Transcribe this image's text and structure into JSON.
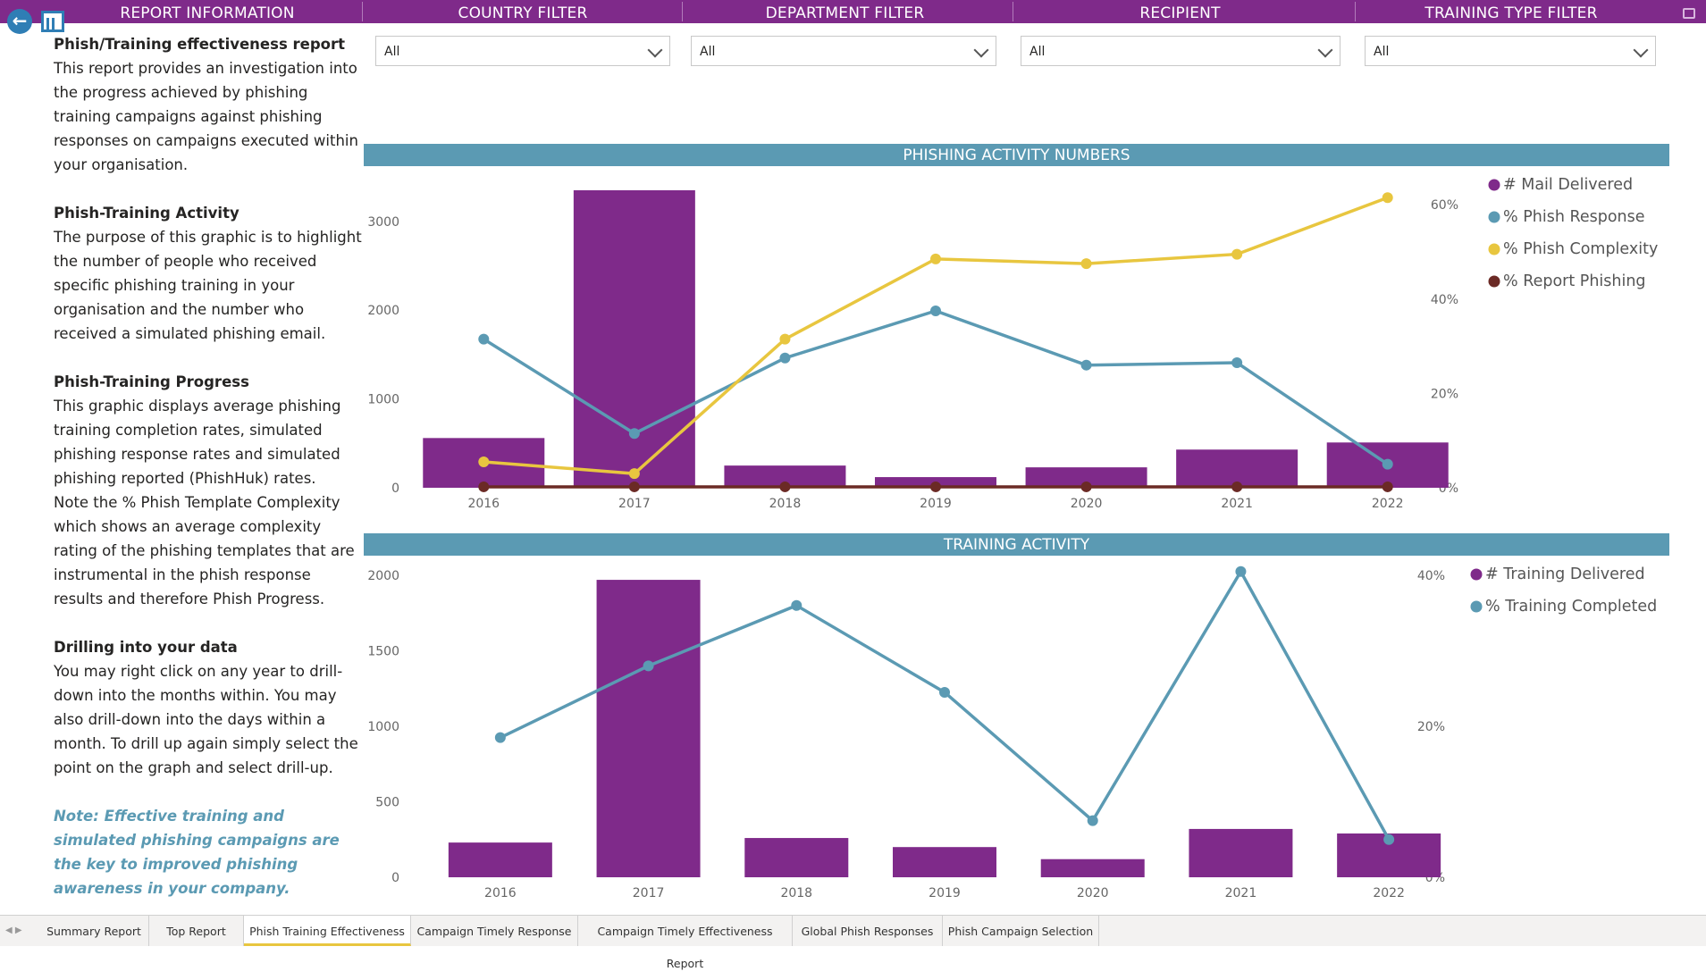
{
  "header": {
    "report_info": "REPORT INFORMATION",
    "country": "COUNTRY FILTER",
    "department": "DEPARTMENT FILTER",
    "recipient": "RECIPIENT",
    "training_type": "TRAINING TYPE FILTER"
  },
  "filters": {
    "country": "All",
    "department": "All",
    "recipient": "All",
    "training_type": "All"
  },
  "info": {
    "title1": "Phish/Training effectiveness report",
    "body1": "This report provides an investigation  into the progress achieved by phishing training campaigns against phishing responses on campaigns executed within your organisation.",
    "title2": "Phish-Training Activity",
    "body2": "The purpose of this graphic is to highlight the number of people who received specific phishing training in your organisation and the number who received a simulated phishing email.",
    "title3": "Phish-Training Progress",
    "body3a": "This graphic displays average phishing training completion rates, simulated phishing response rates and simulated phishing reported (PhishHuk) rates.",
    "body3b": "Note the % Phish Template Complexity which shows an average complexity rating of the phishing templates that are instrumental in the phish response results and therefore Phish Progress.",
    "title4": "Drilling into your data",
    "body4": "You may right click on any year to drill-down into the months within. You may also drill-down into the days within a month. To drill up again simply select the point on the graph and select drill-up.",
    "note": "Note: Effective training and simulated phishing campaigns are the key to improved phishing awareness in your company."
  },
  "sections": {
    "phishing": "PHISHING ACTIVITY NUMBERS",
    "training": "TRAINING ACTIVITY"
  },
  "chart_data": [
    {
      "type": "bar",
      "title": "PHISHING ACTIVITY NUMBERS",
      "categories": [
        "2016",
        "2017",
        "2018",
        "2019",
        "2020",
        "2021",
        "2022"
      ],
      "y_left_ticks": [
        "0",
        "1000",
        "2000",
        "3000"
      ],
      "y_left_range": [
        0,
        3400
      ],
      "y_right_ticks": [
        "0%",
        "20%",
        "40%",
        "60%"
      ],
      "y_right_range": [
        0,
        64
      ],
      "bars": {
        "name": "# Mail Delivered",
        "color": "#7F2A8A",
        "values": [
          560,
          3350,
          250,
          120,
          230,
          430,
          510
        ]
      },
      "lines": [
        {
          "name": "% Phish Response",
          "color": "#5b9ab3",
          "values": [
            31.5,
            11.5,
            27.5,
            37.5,
            26,
            26.5,
            5
          ]
        },
        {
          "name": "% Phish Complexity",
          "color": "#e8c63f",
          "values": [
            5.5,
            3,
            31.5,
            48.5,
            47.5,
            49.5,
            61.5
          ]
        },
        {
          "name": "% Report Phishing",
          "color": "#6b2a25",
          "values": [
            0.2,
            0.2,
            0.2,
            0.2,
            0.2,
            0.2,
            0.2
          ]
        }
      ],
      "legend": "top-right"
    },
    {
      "type": "bar",
      "title": "TRAINING ACTIVITY",
      "categories": [
        "2016",
        "2017",
        "2018",
        "2019",
        "2020",
        "2021",
        "2022"
      ],
      "y_left_ticks": [
        "0",
        "500",
        "1000",
        "1500",
        "2000"
      ],
      "y_left_range": [
        0,
        2000
      ],
      "y_right_ticks": [
        "0%",
        "20%",
        "40%"
      ],
      "y_right_range": [
        0,
        40
      ],
      "bars": {
        "name": "# Training Delivered",
        "color": "#7F2A8A",
        "values": [
          230,
          1970,
          260,
          200,
          120,
          320,
          290
        ]
      },
      "lines": [
        {
          "name": "% Training Completed",
          "color": "#5b9ab3",
          "values": [
            18.5,
            28,
            36,
            24.5,
            7.5,
            40.5,
            5
          ]
        }
      ],
      "legend": "top-right"
    }
  ],
  "tabs": [
    {
      "label": "Summary Report"
    },
    {
      "label": "Top Report"
    },
    {
      "label": "Phish Training Effectiveness"
    },
    {
      "label": "Campaign Timely Response"
    },
    {
      "label": "Campaign Timely Effectiveness Report"
    },
    {
      "label": "Global Phish Responses"
    },
    {
      "label": "Phish Campaign Selection"
    }
  ]
}
